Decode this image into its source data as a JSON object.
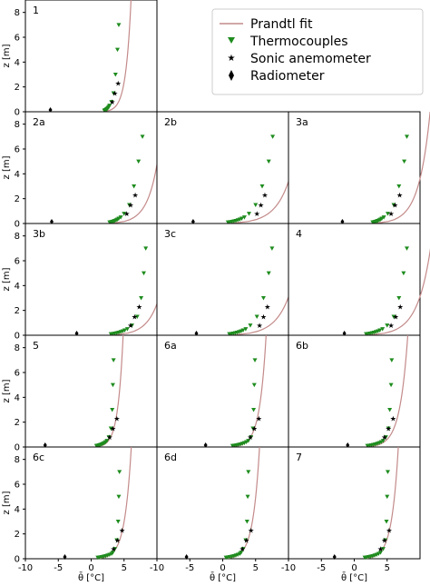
{
  "chart_data": {
    "type": "scatter",
    "legend": {
      "placement": "top-right",
      "entries": [
        {
          "label": "Prandtl fit",
          "marker": "line",
          "color": "#c48a8a"
        },
        {
          "label": "Thermocouples",
          "marker": "triangle-down",
          "color": "#1e8c1e"
        },
        {
          "label": "Sonic anemometer",
          "marker": "star",
          "color": "#000000"
        },
        {
          "label": "Radiometer",
          "marker": "diamond",
          "color": "#000000"
        }
      ]
    },
    "xlabel": "θ̄ [°C]",
    "ylabel": "z [m]",
    "xlim": [
      -10,
      10
    ],
    "ylim": [
      0,
      9
    ],
    "xticks": [
      -10,
      -5,
      0,
      5
    ],
    "yticks": [
      0,
      2,
      4,
      6,
      8
    ],
    "panels": [
      {
        "label": "1",
        "tc_x": [
          2.0,
          2.1,
          2.2,
          2.3,
          2.4,
          2.5,
          2.6,
          2.7,
          2.8,
          3.1,
          3.4,
          3.7,
          4.0,
          4.2
        ],
        "tc_z": [
          0.1,
          0.12,
          0.15,
          0.18,
          0.22,
          0.27,
          0.33,
          0.4,
          0.5,
          0.8,
          1.5,
          3.0,
          5.0,
          7.0
        ],
        "sonic_x": [
          3.2,
          3.6,
          4.1
        ],
        "sonic_z": [
          0.8,
          1.5,
          2.3
        ],
        "rad_x": -6.2,
        "fit_theta0": 1.9,
        "fit_a": 0.8
      },
      {
        "label": "2a",
        "tc_x": [
          2.8,
          3.0,
          3.2,
          3.4,
          3.6,
          3.8,
          4.0,
          4.2,
          4.5,
          5.0,
          5.8,
          6.5,
          7.2,
          7.8
        ],
        "tc_z": [
          0.1,
          0.12,
          0.15,
          0.18,
          0.22,
          0.27,
          0.33,
          0.4,
          0.5,
          0.8,
          1.5,
          3.0,
          5.0,
          7.0
        ],
        "sonic_x": [
          5.4,
          6.0,
          6.7
        ],
        "sonic_z": [
          0.8,
          1.5,
          2.3
        ],
        "rad_x": -6.0,
        "fit_theta0": 2.7,
        "fit_a": 1.6
      },
      {
        "label": "2b",
        "tc_x": [
          0.8,
          1.1,
          1.4,
          1.7,
          2.0,
          2.3,
          2.6,
          2.9,
          3.3,
          4.0,
          5.0,
          6.0,
          7.0,
          7.6
        ],
        "tc_z": [
          0.1,
          0.12,
          0.15,
          0.18,
          0.22,
          0.27,
          0.33,
          0.4,
          0.5,
          0.8,
          1.5,
          3.0,
          5.0,
          7.0
        ],
        "sonic_x": [
          5.2,
          5.8,
          6.4
        ],
        "sonic_z": [
          0.8,
          1.5,
          2.3
        ],
        "rad_x": -4.5,
        "fit_theta0": 0.7,
        "fit_a": 2.2
      },
      {
        "label": "3a",
        "tc_x": [
          2.8,
          3.0,
          3.2,
          3.4,
          3.6,
          3.8,
          4.0,
          4.2,
          4.5,
          5.1,
          6.0,
          6.8,
          7.6,
          8.0
        ],
        "tc_z": [
          0.1,
          0.12,
          0.15,
          0.18,
          0.22,
          0.27,
          0.33,
          0.4,
          0.5,
          0.8,
          1.5,
          3.0,
          5.0,
          7.0
        ],
        "sonic_x": [
          5.6,
          6.2,
          6.9
        ],
        "sonic_z": [
          0.8,
          1.5,
          2.3
        ],
        "rad_x": -1.8,
        "fit_theta0": 2.7,
        "fit_a": 1.7
      },
      {
        "label": "3b",
        "tc_x": [
          3.0,
          3.3,
          3.6,
          3.9,
          4.2,
          4.5,
          4.8,
          5.1,
          5.5,
          6.2,
          7.0,
          7.6,
          8.0,
          8.3
        ],
        "tc_z": [
          0.1,
          0.12,
          0.15,
          0.18,
          0.22,
          0.27,
          0.33,
          0.4,
          0.5,
          0.8,
          1.5,
          3.0,
          5.0,
          7.0
        ],
        "sonic_x": [
          6.0,
          6.6,
          7.3
        ],
        "sonic_z": [
          0.8,
          1.5,
          2.3
        ],
        "rad_x": -2.2,
        "fit_theta0": 2.9,
        "fit_a": 1.8
      },
      {
        "label": "3c",
        "tc_x": [
          1.0,
          1.3,
          1.6,
          1.9,
          2.2,
          2.5,
          2.8,
          3.1,
          3.5,
          4.2,
          5.2,
          6.2,
          7.0,
          7.5
        ],
        "tc_z": [
          0.1,
          0.12,
          0.15,
          0.18,
          0.22,
          0.27,
          0.33,
          0.4,
          0.5,
          0.8,
          1.5,
          3.0,
          5.0,
          7.0
        ],
        "sonic_x": [
          5.6,
          6.2,
          6.8
        ],
        "sonic_z": [
          0.8,
          1.5,
          2.3
        ],
        "rad_x": -4.0,
        "fit_theta0": 0.9,
        "fit_a": 2.2
      },
      {
        "label": "4",
        "tc_x": [
          1.8,
          2.1,
          2.4,
          2.7,
          3.0,
          3.3,
          3.6,
          3.9,
          4.3,
          5.0,
          6.0,
          6.8,
          7.5,
          8.0
        ],
        "tc_z": [
          0.1,
          0.12,
          0.15,
          0.18,
          0.22,
          0.27,
          0.33,
          0.4,
          0.5,
          0.8,
          1.5,
          3.0,
          5.0,
          7.0
        ],
        "sonic_x": [
          5.6,
          6.3,
          7.0
        ],
        "sonic_z": [
          0.8,
          1.5,
          2.3
        ],
        "rad_x": -1.5,
        "fit_theta0": 1.7,
        "fit_a": 2.0
      },
      {
        "label": "5",
        "tc_x": [
          0.8,
          1.0,
          1.2,
          1.4,
          1.6,
          1.8,
          2.0,
          2.2,
          2.4,
          2.7,
          3.0,
          3.2,
          3.3,
          3.4
        ],
        "tc_z": [
          0.1,
          0.12,
          0.15,
          0.18,
          0.22,
          0.27,
          0.33,
          0.4,
          0.5,
          0.8,
          1.5,
          3.0,
          5.0,
          7.0
        ],
        "sonic_x": [
          2.8,
          3.3,
          3.9
        ],
        "sonic_z": [
          0.8,
          1.5,
          2.3
        ],
        "rad_x": -7.0,
        "fit_theta0": 0.7,
        "fit_a": 0.8
      },
      {
        "label": "6a",
        "tc_x": [
          1.5,
          1.8,
          2.1,
          2.4,
          2.7,
          3.0,
          3.3,
          3.6,
          3.9,
          4.3,
          4.6,
          4.7,
          4.8,
          4.9
        ],
        "tc_z": [
          0.1,
          0.12,
          0.15,
          0.18,
          0.22,
          0.27,
          0.33,
          0.4,
          0.5,
          0.8,
          1.5,
          3.0,
          5.0,
          7.0
        ],
        "sonic_x": [
          4.2,
          4.8,
          5.5
        ],
        "sonic_z": [
          0.8,
          1.5,
          2.3
        ],
        "rad_x": -2.6,
        "fit_theta0": 1.4,
        "fit_a": 1.0
      },
      {
        "label": "6b",
        "tc_x": [
          2.0,
          2.3,
          2.6,
          2.9,
          3.2,
          3.5,
          3.8,
          4.1,
          4.4,
          4.8,
          5.2,
          5.4,
          5.6,
          5.7
        ],
        "tc_z": [
          0.1,
          0.12,
          0.15,
          0.18,
          0.22,
          0.27,
          0.33,
          0.4,
          0.5,
          0.8,
          1.5,
          3.0,
          5.0,
          7.0
        ],
        "sonic_x": [
          4.6,
          5.2,
          5.9
        ],
        "sonic_z": [
          0.8,
          1.5,
          2.3
        ],
        "rad_x": -1.0,
        "fit_theta0": 1.9,
        "fit_a": 1.2
      },
      {
        "label": "6c",
        "tc_x": [
          1.0,
          1.3,
          1.6,
          1.9,
          2.2,
          2.5,
          2.8,
          3.1,
          3.3,
          3.6,
          3.9,
          4.1,
          4.2,
          4.3
        ],
        "tc_z": [
          0.1,
          0.12,
          0.15,
          0.18,
          0.22,
          0.27,
          0.33,
          0.4,
          0.5,
          0.8,
          1.5,
          3.0,
          5.0,
          7.0
        ],
        "sonic_x": [
          3.4,
          4.0,
          4.7
        ],
        "sonic_z": [
          0.8,
          1.5,
          2.3
        ],
        "rad_x": -4.0,
        "fit_theta0": 0.9,
        "fit_a": 1.0
      },
      {
        "label": "6d",
        "tc_x": [
          0.5,
          0.8,
          1.1,
          1.4,
          1.7,
          2.0,
          2.3,
          2.6,
          2.8,
          3.1,
          3.5,
          3.7,
          3.8,
          3.9
        ],
        "tc_z": [
          0.1,
          0.12,
          0.15,
          0.18,
          0.22,
          0.27,
          0.33,
          0.4,
          0.5,
          0.8,
          1.5,
          3.0,
          5.0,
          7.0
        ],
        "sonic_x": [
          3.0,
          3.6,
          4.3
        ],
        "sonic_z": [
          0.8,
          1.5,
          2.3
        ],
        "rad_x": -5.5,
        "fit_theta0": 0.4,
        "fit_a": 1.0
      },
      {
        "label": "7",
        "tc_x": [
          1.6,
          1.9,
          2.2,
          2.5,
          2.8,
          3.1,
          3.4,
          3.7,
          4.0,
          4.4,
          4.7,
          4.9,
          5.0,
          5.1
        ],
        "tc_z": [
          0.1,
          0.12,
          0.15,
          0.18,
          0.22,
          0.27,
          0.33,
          0.4,
          0.5,
          0.8,
          1.5,
          3.0,
          5.0,
          7.0
        ],
        "sonic_x": [
          4.0,
          4.6,
          5.3
        ],
        "sonic_z": [
          0.8,
          1.5,
          2.3
        ],
        "rad_x": -3.0,
        "fit_theta0": 1.5,
        "fit_a": 1.0
      }
    ]
  }
}
